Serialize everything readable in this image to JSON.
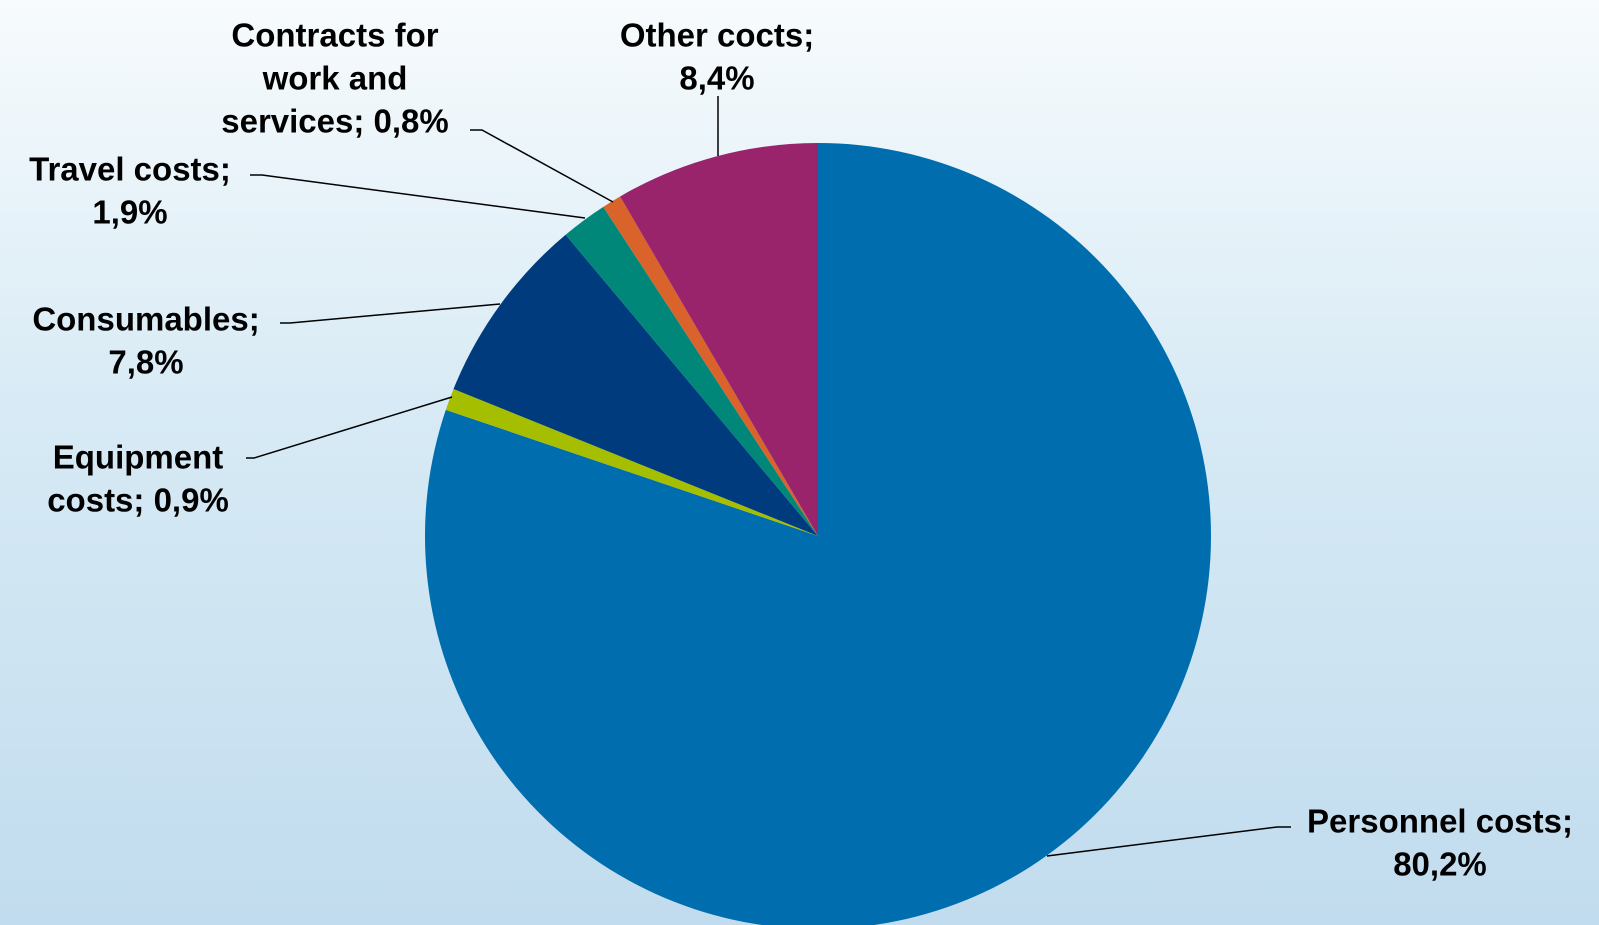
{
  "chart_data": {
    "type": "pie",
    "title": "",
    "start_angle_deg": 0,
    "direction": "clockwise",
    "slices": [
      {
        "name": "Personnel costs",
        "value": 80.2,
        "label": [
          "Personnel costs;",
          "80,2%"
        ],
        "color": "#006eae"
      },
      {
        "name": "Equipment costs",
        "value": 0.9,
        "label": [
          "Equipment",
          "costs; 0,9%"
        ],
        "color": "#a6be00"
      },
      {
        "name": "Consumables",
        "value": 7.8,
        "label": [
          "Consumables;",
          "7,8%"
        ],
        "color": "#003b7d"
      },
      {
        "name": "Travel costs",
        "value": 1.9,
        "label": [
          "Travel costs;",
          "1,9%"
        ],
        "color": "#00877a"
      },
      {
        "name": "Contracts for work and services",
        "value": 0.8,
        "label": [
          "Contracts for",
          "work and",
          "services; 0,8%"
        ],
        "color": "#d9632a"
      },
      {
        "name": "Other cocts",
        "value": 8.4,
        "label": [
          "Other cocts;",
          "8,4%"
        ],
        "color": "#9a246b"
      }
    ]
  }
}
